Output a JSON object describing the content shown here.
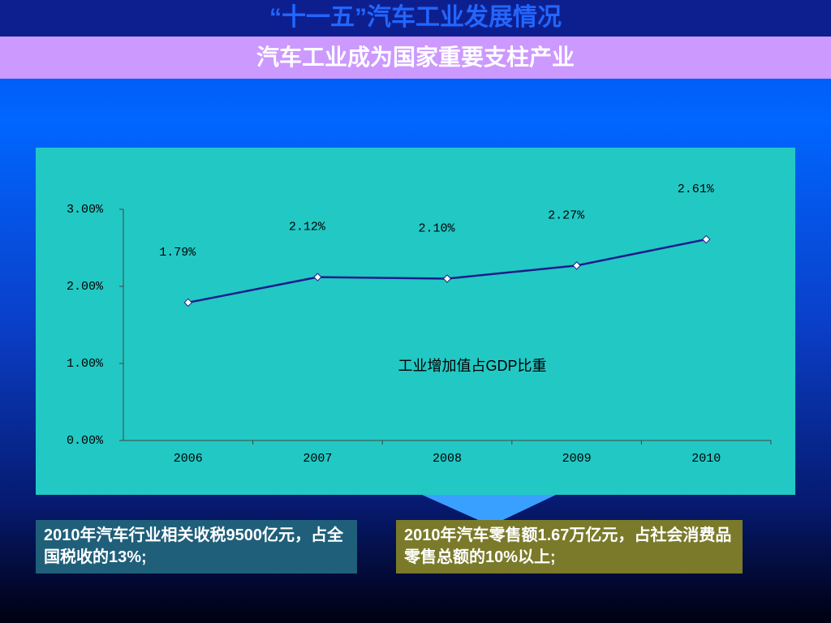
{
  "slide_title": "“十一五”汽车工业发展情况",
  "slide_subtitle": "汽车工业成为国家重要支柱产业",
  "notes": [
    "2010年汽车行业相关收税9500亿元，占全国税收的13%;",
    "2010年汽车零售额1.67万亿元，占社会消费品零售总额的10%以上;"
  ],
  "chart_data": {
    "type": "line",
    "categories": [
      "2006",
      "2007",
      "2008",
      "2009",
      "2010"
    ],
    "series": [
      {
        "name": "工业增加值占GDP比重",
        "color": "#1c1c8c",
        "values": [
          1.79,
          2.12,
          2.1,
          2.27,
          2.61
        ],
        "value_labels": [
          "1.79%",
          "2.12%",
          "2.10%",
          "2.27%",
          "2.61%"
        ]
      }
    ],
    "ylim": [
      0,
      3
    ],
    "yticks": [
      {
        "value": 0,
        "label": "0.00%"
      },
      {
        "value": 1,
        "label": "1.00%"
      },
      {
        "value": 2,
        "label": "2.00%"
      },
      {
        "value": 3,
        "label": "3.00%"
      }
    ]
  }
}
